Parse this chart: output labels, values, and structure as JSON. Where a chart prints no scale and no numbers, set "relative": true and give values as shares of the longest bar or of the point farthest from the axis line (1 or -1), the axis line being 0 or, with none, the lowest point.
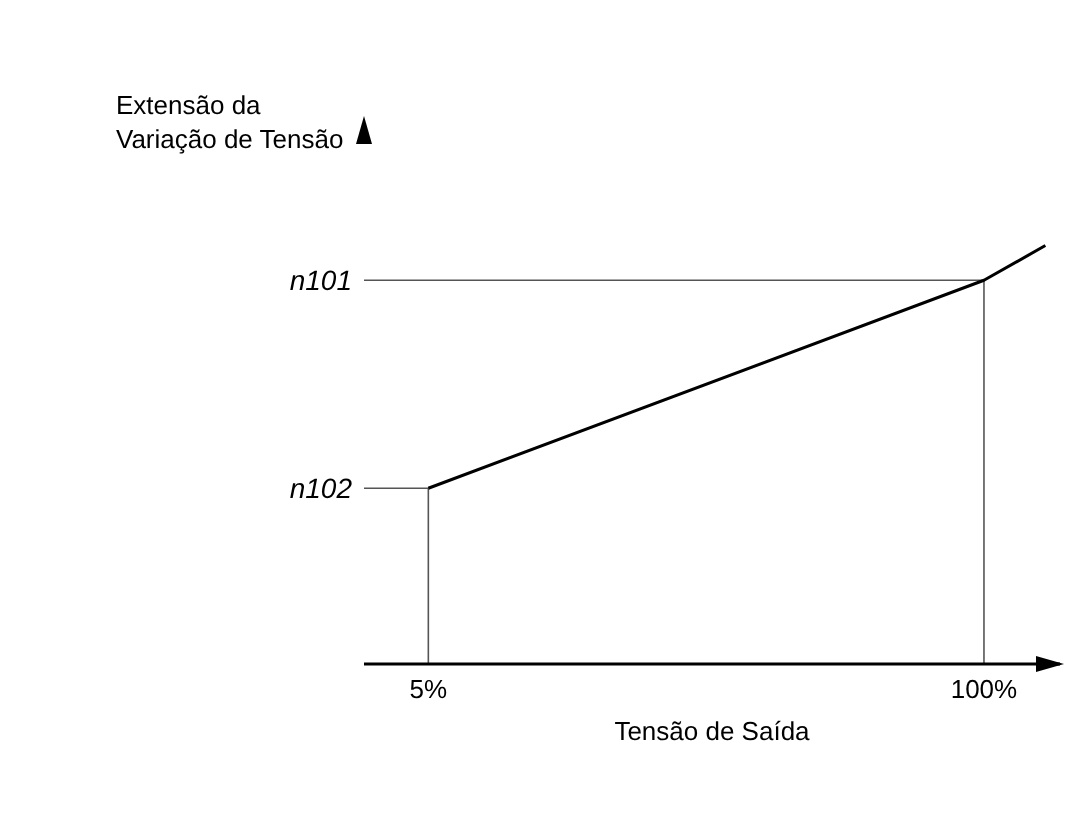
{
  "chart_data": {
    "type": "line",
    "relative": true,
    "xlabel": "Tensão de Saída",
    "ylabel": "Extensão da Variação de Tensão",
    "x": [
      5,
      100,
      110.5
    ],
    "values": [
      0.42,
      0.917,
      1
    ],
    "color": "#000000",
    "xlim": [
      -6,
      113
    ],
    "xticks": [
      {
        "value": 5,
        "label": "5%"
      },
      {
        "value": 100,
        "label": "100%"
      }
    ],
    "ref_lines": [
      {
        "axis": "y",
        "value": 0.917,
        "label": "n101",
        "color": "#555555"
      },
      {
        "axis": "y",
        "value": 0.42,
        "label": "n102",
        "color": "#555555"
      },
      {
        "axis": "x",
        "value": 5,
        "color": "#555555"
      },
      {
        "axis": "x",
        "value": 100,
        "color": "#555555"
      }
    ],
    "grid": false,
    "legend": false,
    "marker": "none",
    "line_style": "solid"
  }
}
